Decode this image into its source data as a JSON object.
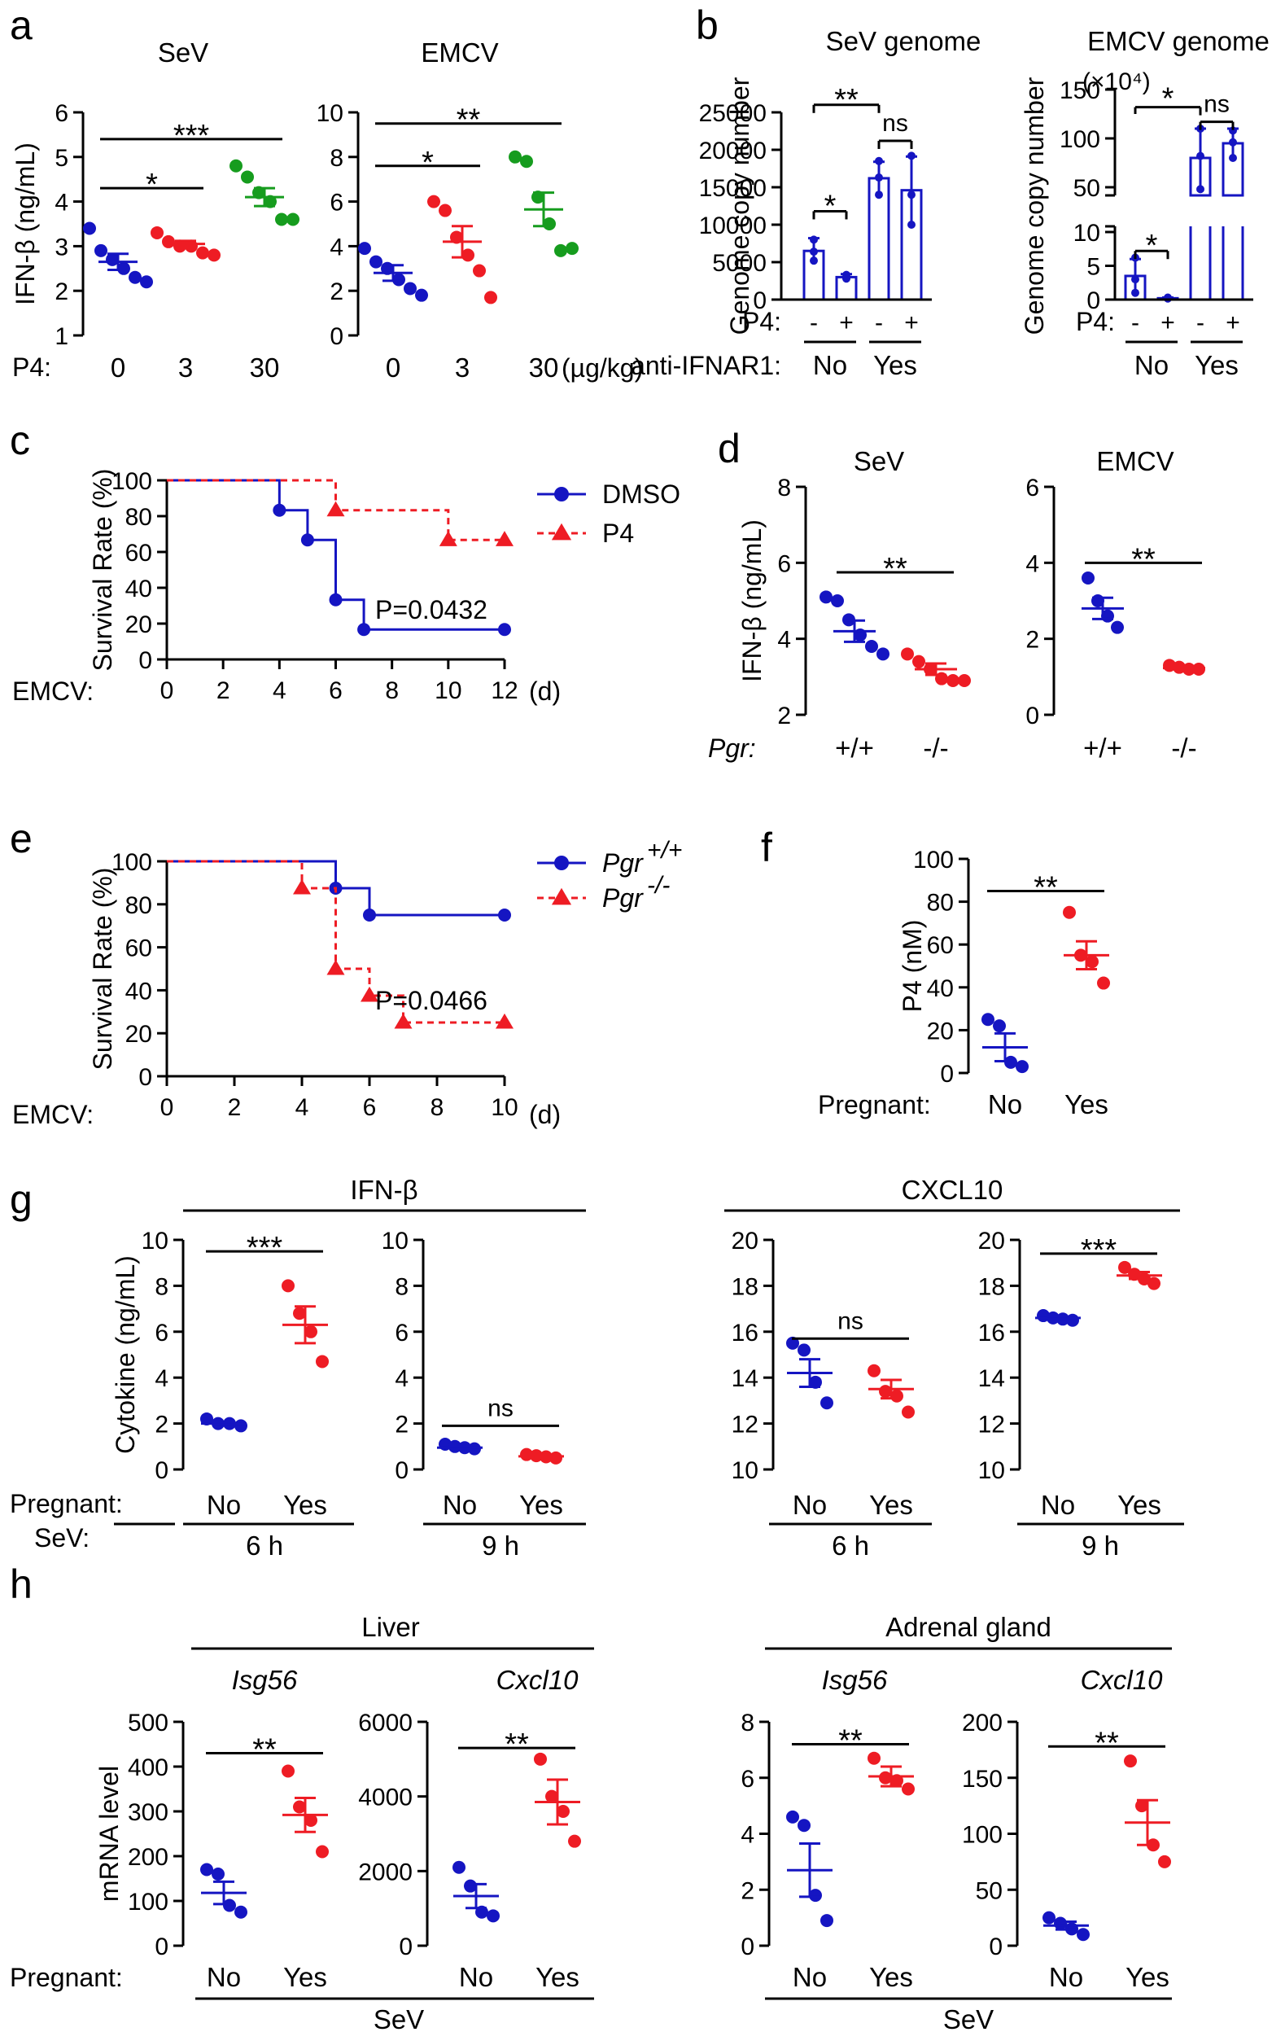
{
  "colors": {
    "blue": "#1515c2",
    "red": "#ee1c24",
    "green": "#169c1e",
    "black": "#000000"
  },
  "panels": {
    "a": {
      "letter": "a",
      "x_row_label": "P4:",
      "unit_label": "(µg/kg)"
    },
    "b": {
      "letter": "b",
      "scale_note": "(×10⁴)",
      "p4_label": "P4:",
      "ifnar_label": "anti-IFNAR1:"
    },
    "c": {
      "letter": "c",
      "x_row_label": "EMCV:",
      "unit": "(d)",
      "p_value": "P=0.0432"
    },
    "d": {
      "letter": "d",
      "x_row_label": "Pgr:"
    },
    "e": {
      "letter": "e",
      "x_row_label": "EMCV:",
      "unit": "(d)",
      "p_value": "P=0.0466"
    },
    "f": {
      "letter": "f",
      "x_row_label": "Pregnant:"
    },
    "g": {
      "letter": "g",
      "x_row_label": "Pregnant:",
      "sev_label": "SeV:",
      "group_ifn": "IFN-β",
      "group_cxcl": "CXCL10",
      "time_6h": "6 h",
      "time_9h": "9 h"
    },
    "h": {
      "letter": "h",
      "x_row_label": "Pregnant:",
      "group_liver": "Liver",
      "group_adrenal": "Adrenal gland",
      "gene_isg": "Isg56",
      "gene_cxcl": "Cxcl10",
      "sev_label": "SeV"
    }
  },
  "chart_data": [
    {
      "id": "a1",
      "type": "scatter",
      "title": "SeV",
      "ylabel": "IFN-β (ng/mL)",
      "ylim": [
        1,
        6
      ],
      "yticks": [
        1,
        2,
        3,
        4,
        5,
        6
      ],
      "categories": [
        "0",
        "3",
        "30"
      ],
      "series": [
        {
          "name": "0",
          "color": "blue",
          "values": [
            3.4,
            2.9,
            2.7,
            2.5,
            2.3,
            2.2
          ],
          "mean": 2.65,
          "sem": 0.18
        },
        {
          "name": "3",
          "color": "red",
          "values": [
            3.3,
            3.1,
            3.0,
            3.0,
            2.85,
            2.8
          ],
          "mean": 3.05,
          "sem": 0.07
        },
        {
          "name": "30",
          "color": "green",
          "values": [
            4.8,
            4.55,
            4.2,
            4.0,
            3.6,
            3.6
          ],
          "mean": 4.1,
          "sem": 0.2
        }
      ],
      "sig": [
        {
          "from": 0,
          "to": 1,
          "label": "*",
          "y": 4.3
        },
        {
          "from": 0,
          "to": 2,
          "label": "***",
          "y": 5.4
        }
      ]
    },
    {
      "id": "a2",
      "type": "scatter",
      "title": "EMCV",
      "ylim": [
        0,
        10
      ],
      "yticks": [
        0,
        2,
        4,
        6,
        8,
        10
      ],
      "categories": [
        "0",
        "3",
        "30"
      ],
      "series": [
        {
          "name": "0",
          "color": "blue",
          "values": [
            3.9,
            3.3,
            3.0,
            2.5,
            2.1,
            1.8
          ],
          "mean": 2.8,
          "sem": 0.35
        },
        {
          "name": "3",
          "color": "red",
          "values": [
            6.0,
            5.6,
            4.4,
            3.6,
            2.9,
            1.7
          ],
          "mean": 4.2,
          "sem": 0.7
        },
        {
          "name": "30",
          "color": "green",
          "values": [
            8.0,
            7.8,
            6.2,
            5.0,
            3.8,
            3.9
          ],
          "mean": 5.65,
          "sem": 0.75
        }
      ],
      "sig": [
        {
          "from": 0,
          "to": 1,
          "label": "*",
          "y": 7.6
        },
        {
          "from": 0,
          "to": 2,
          "label": "**",
          "y": 9.5
        }
      ]
    },
    {
      "id": "b1",
      "type": "bar",
      "title": "SeV genome",
      "ylabel": "Genome copy number",
      "ylim": [
        0,
        25000
      ],
      "yticks": [
        0,
        5000,
        10000,
        15000,
        20000,
        25000
      ],
      "p4": [
        "-",
        "+",
        "-",
        "+"
      ],
      "groups": [
        "No",
        "Yes"
      ],
      "bars": [
        {
          "value": 6500,
          "err": 1700,
          "points": [
            8000,
            6400,
            5200
          ]
        },
        {
          "value": 3000,
          "err": 400,
          "points": [
            3300,
            2900,
            2800
          ]
        },
        {
          "value": 16200,
          "err": 2200,
          "points": [
            18500,
            16300,
            14000
          ]
        },
        {
          "value": 14600,
          "err": 4500,
          "points": [
            19200,
            14000,
            10000
          ]
        }
      ],
      "sig": [
        {
          "from": 0,
          "to": 1,
          "label": "*",
          "y": 11800
        },
        {
          "from": 0,
          "to": 2,
          "label": "**",
          "y": 26000
        },
        {
          "from": 2,
          "to": 3,
          "label": "ns",
          "y": 21200
        }
      ]
    },
    {
      "id": "b2",
      "type": "bar",
      "title": "EMCV genome",
      "ylabel": "Genome copy number",
      "ylim_low": [
        0,
        10
      ],
      "ylim_high": [
        50,
        150
      ],
      "yticks_low": [
        0,
        5,
        10
      ],
      "yticks_high": [
        50,
        100,
        150
      ],
      "p4": [
        "-",
        "+",
        "-",
        "+"
      ],
      "groups": [
        "No",
        "Yes"
      ],
      "bars": [
        {
          "value": 3.5,
          "err": 2.5,
          "points": [
            6.2,
            3.0,
            1.0
          ]
        },
        {
          "value": 0.2,
          "err": 0.1,
          "points": [
            0.3,
            0.2,
            0.15
          ]
        },
        {
          "value": 80,
          "err": 30,
          "points": [
            110,
            82,
            48
          ]
        },
        {
          "value": 95,
          "err": 15,
          "points": [
            108,
            96,
            80
          ]
        }
      ],
      "sig": [
        {
          "from": 0,
          "to": 1,
          "label": "*",
          "y_low": 7.2
        },
        {
          "from": 0,
          "to": 2,
          "label": "*",
          "y_high": 132
        },
        {
          "from": 2,
          "to": 3,
          "label": "ns",
          "y_high": 117
        }
      ]
    },
    {
      "id": "c",
      "type": "line",
      "ylabel": "Survival Rate (%)",
      "xlim": [
        0,
        12
      ],
      "xticks": [
        0,
        2,
        4,
        6,
        8,
        10,
        12
      ],
      "ylim": [
        0,
        100
      ],
      "yticks": [
        0,
        20,
        40,
        60,
        80,
        100
      ],
      "series": [
        {
          "name": "DMSO",
          "color": "blue",
          "dash": false,
          "marker": "circle",
          "steps": [
            [
              0,
              100
            ],
            [
              4,
              83.3
            ],
            [
              5,
              66.7
            ],
            [
              6,
              33.3
            ],
            [
              7,
              16.7
            ],
            [
              12,
              16.7
            ]
          ]
        },
        {
          "name": "P4",
          "color": "red",
          "dash": true,
          "marker": "triangle",
          "steps": [
            [
              0,
              100
            ],
            [
              6,
              83.3
            ],
            [
              10,
              66.7
            ],
            [
              12,
              66.7
            ]
          ]
        }
      ]
    },
    {
      "id": "d1",
      "type": "scatter",
      "title": "SeV",
      "ylabel": "IFN-β (ng/mL)",
      "ylim": [
        2,
        8
      ],
      "yticks": [
        2,
        4,
        6,
        8
      ],
      "categories": [
        "+/+",
        "-/-"
      ],
      "series": [
        {
          "name": "+/+",
          "color": "blue",
          "values": [
            5.1,
            5.0,
            4.5,
            4.1,
            3.8,
            3.6
          ],
          "mean": 4.2,
          "sem": 0.28
        },
        {
          "name": "-/-",
          "color": "red",
          "values": [
            3.6,
            3.4,
            3.2,
            2.95,
            2.9,
            2.9
          ],
          "mean": 3.2,
          "sem": 0.15
        }
      ],
      "sig": [
        {
          "from": 0,
          "to": 1,
          "label": "**",
          "y": 5.75
        }
      ]
    },
    {
      "id": "d2",
      "type": "scatter",
      "title": "EMCV",
      "ylim": [
        0,
        6
      ],
      "yticks": [
        0,
        2,
        4,
        6
      ],
      "categories": [
        "+/+",
        "-/-"
      ],
      "series": [
        {
          "name": "+/+",
          "color": "blue",
          "values": [
            3.6,
            3.0,
            2.6,
            2.3
          ],
          "mean": 2.8,
          "sem": 0.28
        },
        {
          "name": "-/-",
          "color": "red",
          "values": [
            1.3,
            1.25,
            1.2,
            1.2
          ],
          "mean": 1.23,
          "sem": 0.03
        }
      ],
      "sig": [
        {
          "from": 0,
          "to": 1,
          "label": "**",
          "y": 4.0
        }
      ]
    },
    {
      "id": "e",
      "type": "line",
      "ylabel": "Survival Rate (%)",
      "xlim": [
        0,
        10
      ],
      "xticks": [
        0,
        2,
        4,
        6,
        8,
        10
      ],
      "ylim": [
        0,
        100
      ],
      "yticks": [
        0,
        20,
        40,
        60,
        80,
        100
      ],
      "series": [
        {
          "name": "Pgr+/+",
          "label_main": "Pgr",
          "label_sup": "+/+",
          "color": "blue",
          "dash": false,
          "marker": "circle",
          "steps": [
            [
              0,
              100
            ],
            [
              5,
              87.5
            ],
            [
              6,
              75
            ],
            [
              10,
              75
            ]
          ]
        },
        {
          "name": "Pgr-/-",
          "label_main": "Pgr",
          "label_sup": "-/-",
          "color": "red",
          "dash": true,
          "marker": "triangle",
          "steps": [
            [
              0,
              100
            ],
            [
              4,
              87.5
            ],
            [
              5,
              50
            ],
            [
              6,
              37.5
            ],
            [
              7,
              25
            ],
            [
              10,
              25
            ]
          ]
        }
      ]
    },
    {
      "id": "f",
      "type": "scatter",
      "ylabel": "P4 (nM)",
      "ylim": [
        0,
        100
      ],
      "yticks": [
        0,
        20,
        40,
        60,
        80,
        100
      ],
      "categories": [
        "No",
        "Yes"
      ],
      "series": [
        {
          "name": "No",
          "color": "blue",
          "values": [
            25,
            22,
            5,
            3
          ],
          "mean": 12,
          "sem": 6.5
        },
        {
          "name": "Yes",
          "color": "red",
          "values": [
            75,
            55,
            52,
            42
          ],
          "mean": 55,
          "sem": 6.5
        }
      ],
      "sig": [
        {
          "from": 0,
          "to": 1,
          "label": "**",
          "y": 85
        }
      ]
    },
    {
      "id": "g1",
      "type": "scatter",
      "ylabel": "Cytokine (ng/mL)",
      "ylim": [
        0,
        10
      ],
      "yticks": [
        0,
        2,
        4,
        6,
        8,
        10
      ],
      "categories": [
        "No",
        "Yes"
      ],
      "series": [
        {
          "name": "No",
          "color": "blue",
          "values": [
            2.2,
            2.0,
            2.0,
            1.9
          ],
          "mean": 2.0,
          "sem": 0.06
        },
        {
          "name": "Yes",
          "color": "red",
          "values": [
            8.0,
            6.8,
            6.0,
            4.7
          ],
          "mean": 6.3,
          "sem": 0.8
        }
      ],
      "sig": [
        {
          "from": 0,
          "to": 1,
          "label": "***",
          "y": 9.5
        }
      ]
    },
    {
      "id": "g2",
      "type": "scatter",
      "ylim": [
        0,
        10
      ],
      "yticks": [
        0,
        2,
        4,
        6,
        8,
        10
      ],
      "categories": [
        "No",
        "Yes"
      ],
      "series": [
        {
          "name": "No",
          "color": "blue",
          "values": [
            1.1,
            1.0,
            0.95,
            0.9
          ],
          "mean": 0.95,
          "sem": 0.06
        },
        {
          "name": "Yes",
          "color": "red",
          "values": [
            0.65,
            0.6,
            0.55,
            0.5
          ],
          "mean": 0.57,
          "sem": 0.04
        }
      ],
      "sig": [
        {
          "from": 0,
          "to": 1,
          "label": "ns",
          "y": 1.9
        }
      ]
    },
    {
      "id": "g3",
      "type": "scatter",
      "ylim": [
        10,
        20
      ],
      "yticks": [
        10,
        12,
        14,
        16,
        18,
        20
      ],
      "categories": [
        "No",
        "Yes"
      ],
      "series": [
        {
          "name": "No",
          "color": "blue",
          "values": [
            15.5,
            15.2,
            13.8,
            12.9
          ],
          "mean": 14.2,
          "sem": 0.6
        },
        {
          "name": "Yes",
          "color": "red",
          "values": [
            14.3,
            13.4,
            13.2,
            12.5
          ],
          "mean": 13.5,
          "sem": 0.4
        }
      ],
      "sig": [
        {
          "from": 0,
          "to": 1,
          "label": "ns",
          "y": 15.7
        }
      ]
    },
    {
      "id": "g4",
      "type": "scatter",
      "ylim": [
        10,
        20
      ],
      "yticks": [
        10,
        12,
        14,
        16,
        18,
        20
      ],
      "categories": [
        "No",
        "Yes"
      ],
      "series": [
        {
          "name": "No",
          "color": "blue",
          "values": [
            16.7,
            16.6,
            16.55,
            16.5
          ],
          "mean": 16.6,
          "sem": 0.05
        },
        {
          "name": "Yes",
          "color": "red",
          "values": [
            18.8,
            18.5,
            18.3,
            18.1
          ],
          "mean": 18.45,
          "sem": 0.15
        }
      ],
      "sig": [
        {
          "from": 0,
          "to": 1,
          "label": "***",
          "y": 19.4
        }
      ]
    },
    {
      "id": "h1",
      "type": "scatter",
      "ylabel": "mRNA level",
      "ylim": [
        0,
        500
      ],
      "yticks": [
        0,
        100,
        200,
        300,
        400,
        500
      ],
      "categories": [
        "No",
        "Yes"
      ],
      "series": [
        {
          "name": "No",
          "color": "blue",
          "values": [
            170,
            160,
            90,
            75
          ],
          "mean": 118,
          "sem": 25
        },
        {
          "name": "Yes",
          "color": "red",
          "values": [
            390,
            310,
            280,
            210
          ],
          "mean": 292,
          "sem": 38
        }
      ],
      "sig": [
        {
          "from": 0,
          "to": 1,
          "label": "**",
          "y": 430
        }
      ]
    },
    {
      "id": "h2",
      "type": "scatter",
      "ylim": [
        0,
        6000
      ],
      "yticks": [
        0,
        2000,
        4000,
        6000
      ],
      "categories": [
        "No",
        "Yes"
      ],
      "series": [
        {
          "name": "No",
          "color": "blue",
          "values": [
            2100,
            1600,
            900,
            800
          ],
          "mean": 1330,
          "sem": 320
        },
        {
          "name": "Yes",
          "color": "red",
          "values": [
            5000,
            4000,
            3600,
            2800
          ],
          "mean": 3850,
          "sem": 600
        }
      ],
      "sig": [
        {
          "from": 0,
          "to": 1,
          "label": "**",
          "y": 5300
        }
      ]
    },
    {
      "id": "h3",
      "type": "scatter",
      "ylim": [
        0,
        8
      ],
      "yticks": [
        0,
        2,
        4,
        6,
        8
      ],
      "categories": [
        "No",
        "Yes"
      ],
      "series": [
        {
          "name": "No",
          "color": "blue",
          "values": [
            4.6,
            4.3,
            1.8,
            0.9
          ],
          "mean": 2.7,
          "sem": 0.95
        },
        {
          "name": "Yes",
          "color": "red",
          "values": [
            6.7,
            6.0,
            5.9,
            5.6
          ],
          "mean": 6.05,
          "sem": 0.35
        }
      ],
      "sig": [
        {
          "from": 0,
          "to": 1,
          "label": "**",
          "y": 7.2
        }
      ]
    },
    {
      "id": "h4",
      "type": "scatter",
      "ylim": [
        0,
        200
      ],
      "yticks": [
        0,
        50,
        100,
        150,
        200
      ],
      "categories": [
        "No",
        "Yes"
      ],
      "series": [
        {
          "name": "No",
          "color": "blue",
          "values": [
            25,
            20,
            15,
            10
          ],
          "mean": 18,
          "sem": 3.5
        },
        {
          "name": "Yes",
          "color": "red",
          "values": [
            165,
            125,
            90,
            75
          ],
          "mean": 110,
          "sem": 20
        }
      ],
      "sig": [
        {
          "from": 0,
          "to": 1,
          "label": "**",
          "y": 178
        }
      ]
    }
  ]
}
